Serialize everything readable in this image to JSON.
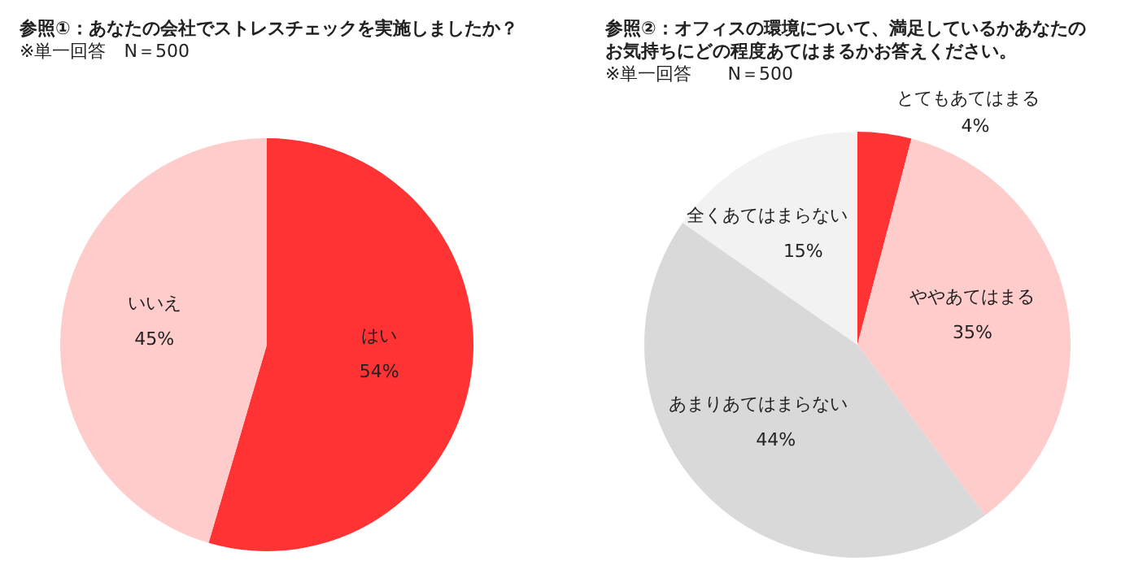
{
  "chart_data": [
    {
      "type": "pie",
      "title": "参照①：あなたの会社でストレスチェックを実施しましたか？",
      "subtitle": "※単一回答　N＝500",
      "categories": [
        "はい",
        "いいえ"
      ],
      "values": [
        54,
        45
      ],
      "value_labels": [
        "54%",
        "45%"
      ],
      "colors": [
        "#ff3333",
        "#ffcccc"
      ]
    },
    {
      "type": "pie",
      "title": "参照②：オフィスの環境について、満足しているかあなたのお気持ちにどの程度あてはまるかお答えください。",
      "subtitle": "※単一回答　　N＝500",
      "categories": [
        "とてもあてはまる",
        "ややあてはまる",
        "あまりあてはまらない",
        "全くあてはまらない"
      ],
      "values": [
        4,
        35,
        44,
        15
      ],
      "value_labels": [
        "4%",
        "35%",
        "44%",
        "15%"
      ],
      "colors": [
        "#ff3333",
        "#ffcccc",
        "#d9d9d9",
        "#f2f2f2"
      ]
    }
  ]
}
